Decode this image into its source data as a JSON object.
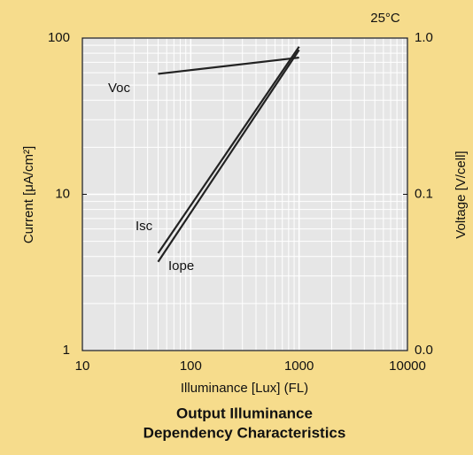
{
  "chart_data": {
    "type": "line",
    "title": [
      "Output Illuminance",
      "Dependency Characteristics"
    ],
    "annotation": "25°C",
    "x_label": "Illuminance [Lux] (FL)",
    "y_label": "Current [μA/cm²]",
    "y2_label": "Voltage [V/cell]",
    "x": [
      50,
      1000
    ],
    "xlim": [
      10,
      10000
    ],
    "xticks": [
      10,
      100,
      1000,
      10000
    ],
    "xscale": "log",
    "ylim": [
      1,
      100
    ],
    "yticks": [
      1,
      10,
      100
    ],
    "yscale": "log",
    "y2lim": [
      0.01,
      1
    ],
    "y2ticks": [
      {
        "value": 0.01,
        "label": "0.0"
      },
      0.1,
      {
        "value": 1,
        "label": "1.0"
      }
    ],
    "y2scale": "log",
    "grid": true,
    "series": [
      {
        "name": "Voc",
        "color": "#222222",
        "axis": "y2",
        "values": [
          0.59,
          0.75
        ]
      },
      {
        "name": "Isc",
        "color": "#222222",
        "values": [
          4.2,
          88
        ]
      },
      {
        "name": "Iope",
        "color": "#222222",
        "values": [
          3.7,
          84
        ]
      }
    ]
  }
}
